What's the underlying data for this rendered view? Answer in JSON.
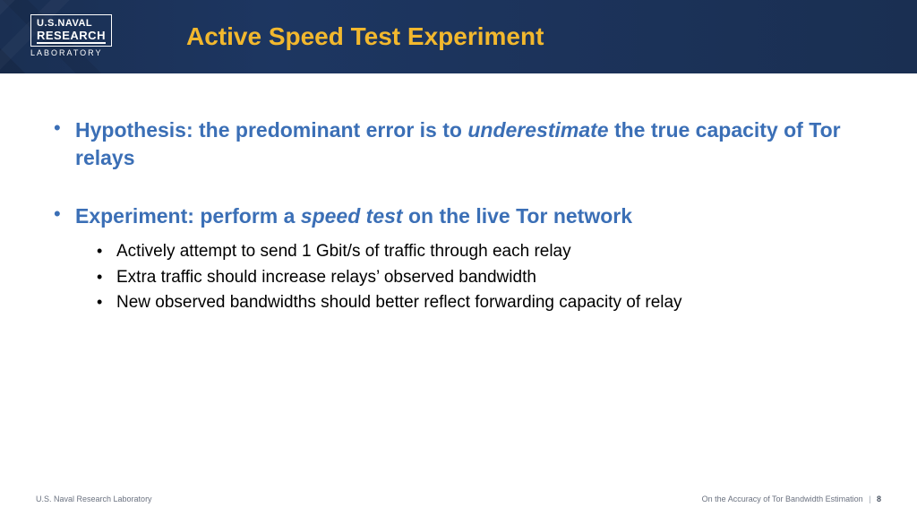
{
  "header": {
    "logo": {
      "line1": "U.S.NAVAL",
      "line2": "RESEARCH",
      "sub": "LABORATORY"
    },
    "title": "Active Speed Test Experiment"
  },
  "bullets": [
    {
      "lead_prefix": "Hypothesis: the predominant error is to ",
      "lead_em": "underestimate",
      "lead_suffix": " the true capacity of Tor relays",
      "subs": []
    },
    {
      "lead_prefix": "Experiment: perform a ",
      "lead_em": "speed test",
      "lead_suffix": " on the live Tor network",
      "subs": [
        "Actively attempt to send 1 Gbit/s of traffic through each relay",
        "Extra traffic should increase relays’ observed bandwidth",
        "New observed bandwidths should better reflect forwarding capacity of relay"
      ]
    }
  ],
  "footer": {
    "left": "U.S. Naval Research Laboratory",
    "right_title": "On the Accuracy of Tor Bandwidth Estimation",
    "page": "8"
  }
}
